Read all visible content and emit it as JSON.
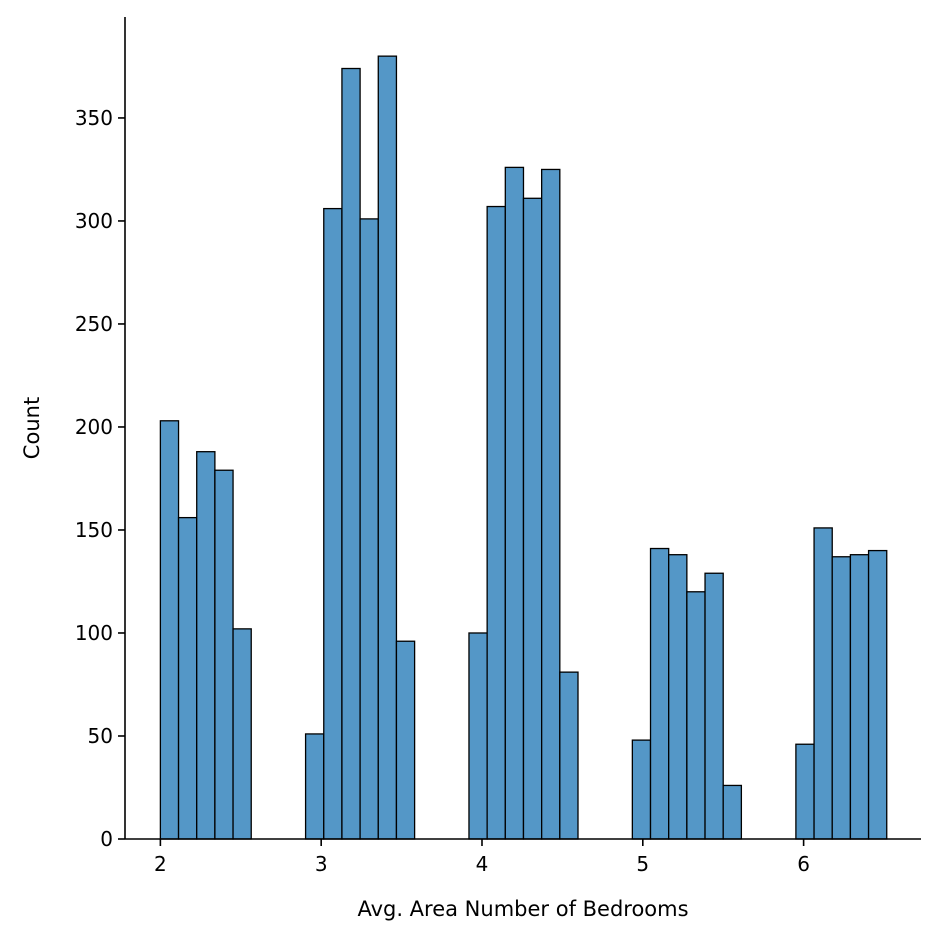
{
  "chart_data": {
    "type": "bar",
    "title": "",
    "xlabel": "Avg. Area Number of Bedrooms",
    "ylabel": "Count",
    "xlim": [
      1.78,
      6.73
    ],
    "ylim": [
      0,
      399
    ],
    "xticks": [
      2,
      3,
      4,
      5,
      6
    ],
    "yticks": [
      0,
      50,
      100,
      150,
      200,
      250,
      300,
      350
    ],
    "grid": false,
    "bar_color": "#5497c7",
    "edge_color": "#000000",
    "bins": [
      {
        "x0": 2.0,
        "x1": 2.113,
        "count": 203
      },
      {
        "x0": 2.113,
        "x1": 2.226,
        "count": 156
      },
      {
        "x0": 2.226,
        "x1": 2.339,
        "count": 188
      },
      {
        "x0": 2.339,
        "x1": 2.452,
        "count": 179
      },
      {
        "x0": 2.452,
        "x1": 2.565,
        "count": 102
      },
      {
        "x0": 2.903,
        "x1": 3.016,
        "count": 51
      },
      {
        "x0": 3.016,
        "x1": 3.129,
        "count": 306
      },
      {
        "x0": 3.129,
        "x1": 3.242,
        "count": 374
      },
      {
        "x0": 3.242,
        "x1": 3.355,
        "count": 301
      },
      {
        "x0": 3.355,
        "x1": 3.468,
        "count": 380
      },
      {
        "x0": 3.468,
        "x1": 3.581,
        "count": 96
      },
      {
        "x0": 3.919,
        "x1": 4.032,
        "count": 100
      },
      {
        "x0": 4.032,
        "x1": 4.145,
        "count": 307
      },
      {
        "x0": 4.145,
        "x1": 4.258,
        "count": 326
      },
      {
        "x0": 4.258,
        "x1": 4.371,
        "count": 311
      },
      {
        "x0": 4.371,
        "x1": 4.484,
        "count": 325
      },
      {
        "x0": 4.484,
        "x1": 4.597,
        "count": 81
      },
      {
        "x0": 4.935,
        "x1": 5.048,
        "count": 48
      },
      {
        "x0": 5.048,
        "x1": 5.161,
        "count": 141
      },
      {
        "x0": 5.161,
        "x1": 5.274,
        "count": 138
      },
      {
        "x0": 5.274,
        "x1": 5.387,
        "count": 120
      },
      {
        "x0": 5.387,
        "x1": 5.5,
        "count": 129
      },
      {
        "x0": 5.5,
        "x1": 5.613,
        "count": 26
      },
      {
        "x0": 5.952,
        "x1": 6.065,
        "count": 46
      },
      {
        "x0": 6.065,
        "x1": 6.178,
        "count": 151
      },
      {
        "x0": 6.178,
        "x1": 6.291,
        "count": 137
      },
      {
        "x0": 6.291,
        "x1": 6.404,
        "count": 138
      },
      {
        "x0": 6.404,
        "x1": 6.517,
        "count": 140
      }
    ]
  }
}
